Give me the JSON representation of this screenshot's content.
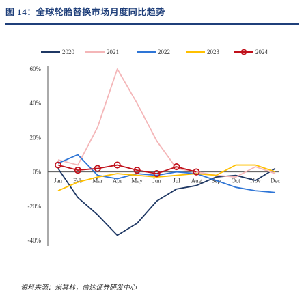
{
  "header": {
    "title": "图 14：全球轮胎替换市场月度同比趋势"
  },
  "footer": {
    "source": "资料来源：米其林，信达证券研发中心"
  },
  "colors": {
    "title": "#1f3f7a",
    "s2020": "#1f3864",
    "s2021": "#f4b6b8",
    "s2022": "#2e75d6",
    "s2023": "#ffc000",
    "s2024": "#c0101a"
  },
  "chart_data": {
    "type": "line",
    "categories": [
      "Jan",
      "Feb",
      "Mar",
      "Apr",
      "May",
      "Jun",
      "Jul",
      "Aug",
      "Sep",
      "Oct",
      "Nov",
      "Dec"
    ],
    "yticks": [
      -40,
      -20,
      0,
      20,
      40,
      60
    ],
    "ytick_labels": [
      "-40%",
      "-20%",
      "0%",
      "20%",
      "40%",
      "60%"
    ],
    "ylim": [
      -40,
      60
    ],
    "legend_position": "top",
    "series": [
      {
        "name": "2020",
        "color_key": "s2020",
        "marker": false,
        "values": [
          2,
          -15,
          -25,
          -37,
          -30,
          -17,
          -10,
          -8,
          -3,
          -2,
          -5,
          2
        ]
      },
      {
        "name": "2021",
        "color_key": "s2021",
        "marker": false,
        "values": [
          7,
          4,
          26,
          60,
          40,
          18,
          2,
          0,
          -2,
          -3,
          3,
          -1
        ]
      },
      {
        "name": "2022",
        "color_key": "s2022",
        "marker": false,
        "values": [
          5,
          10,
          -2,
          -4,
          -1,
          -2,
          0,
          -1,
          -5,
          -9,
          -11,
          -12
        ]
      },
      {
        "name": "2023",
        "color_key": "s2023",
        "marker": false,
        "values": [
          -11,
          -6,
          -3,
          -1,
          -2,
          -3,
          -2,
          -1,
          -2,
          4,
          4,
          0
        ]
      },
      {
        "name": "2024",
        "color_key": "s2024",
        "marker": true,
        "values": [
          4,
          1,
          2,
          4,
          1,
          -1,
          3,
          0,
          null,
          null,
          null,
          null
        ]
      }
    ]
  }
}
